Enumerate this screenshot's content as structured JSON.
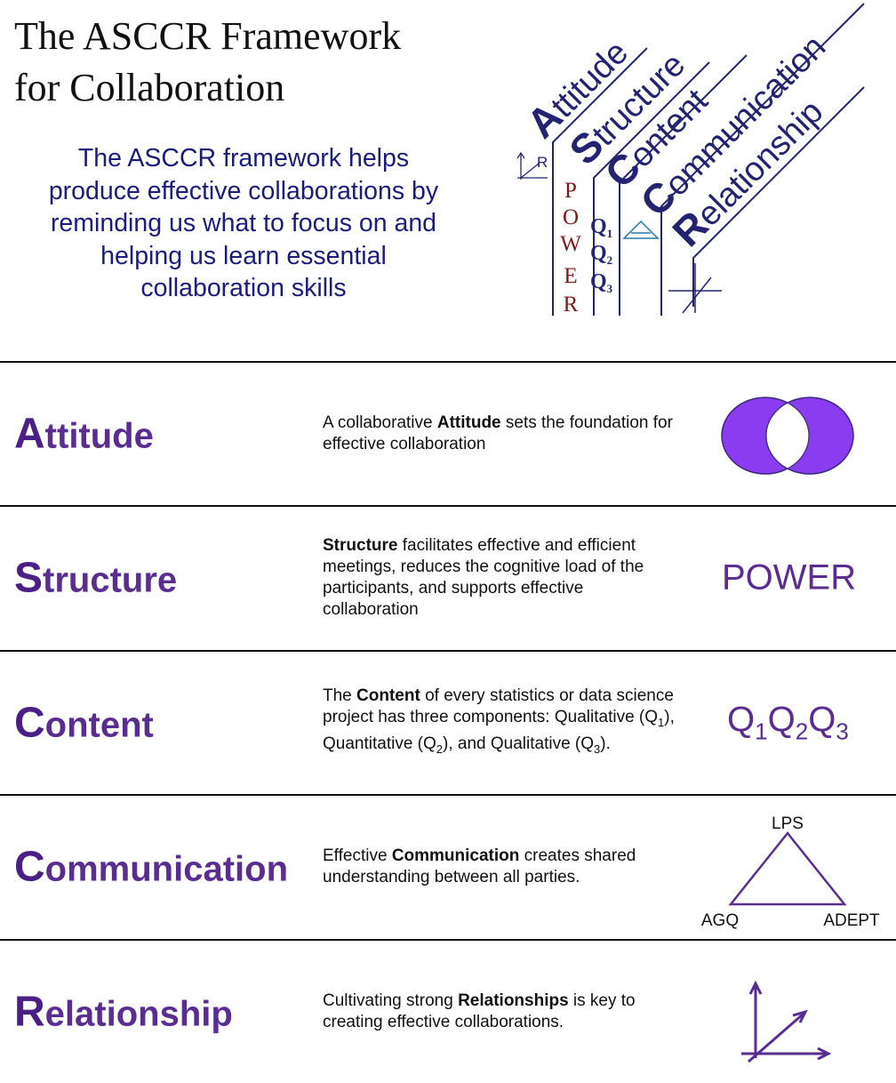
{
  "header": {
    "title_line1": "The ASCCR Framework",
    "title_line2": "for Collaboration",
    "intro": [
      "The ASCCR framework helps",
      "produce effective collaborations by",
      "reminding us what to focus on and",
      "helping us learn essential",
      "collaboration skills"
    ]
  },
  "logo": {
    "words": [
      {
        "initial": "A",
        "rest": "ttitude"
      },
      {
        "initial": "S",
        "rest": "tructure"
      },
      {
        "initial": "C",
        "rest": "ontent"
      },
      {
        "initial": "C",
        "rest": "ommunication"
      },
      {
        "initial": "R",
        "rest": "elationship"
      }
    ],
    "power_letters": [
      "P",
      "O",
      "W",
      "E",
      "R"
    ],
    "q_letter": "Q",
    "q_subs": [
      "1",
      "2",
      "3"
    ],
    "axis_label": "R"
  },
  "rows": [
    {
      "id": "attitude",
      "initial": "A",
      "rest": "ttitude",
      "desc_pre": "A collaborative ",
      "desc_bold": "Attitude",
      "desc_post": " sets the foundation for effective collaboration",
      "icon": "venn-icon"
    },
    {
      "id": "structure",
      "initial": "S",
      "rest": "tructure",
      "desc_pre": "",
      "desc_bold": "Structure",
      "desc_post": " facilitates effective and efficient meetings, reduces the cognitive load of the participants, and supports effective collaboration",
      "icon_text": "POWER"
    },
    {
      "id": "content",
      "initial": "C",
      "rest": "ontent",
      "desc_pre": "The ",
      "desc_bold": "Content",
      "desc_post": " of every statistics or data science project has three components:",
      "desc_q": [
        "Qualitative (Q",
        "1",
        "), Quantitative (Q",
        "2",
        "), and Qualitative (Q",
        "3",
        ")."
      ],
      "icon_q": "Q",
      "icon_subs": [
        "1",
        "2",
        "3"
      ]
    },
    {
      "id": "communication",
      "initial": "C",
      "rest": "ommunication",
      "desc_pre": "Effective ",
      "desc_bold": "Communication",
      "desc_post": " creates shared understanding between all parties.",
      "triangle_labels": {
        "top": "LPS",
        "left": "AGQ",
        "right": "ADEPT"
      }
    },
    {
      "id": "relationship",
      "initial": "R",
      "rest": "elationship",
      "desc_pre": "Cultivating strong ",
      "desc_bold": "Relationships",
      "desc_post": " is key to creating effective collaborations.",
      "icon": "axes-icon"
    }
  ],
  "colors": {
    "purple": "#5a2d91",
    "venn": "#8a3df0",
    "navy": "#1b1b7a",
    "logo_navy": "#232372",
    "maroon": "#7a1a1a",
    "teal": "#2a7aa8"
  }
}
